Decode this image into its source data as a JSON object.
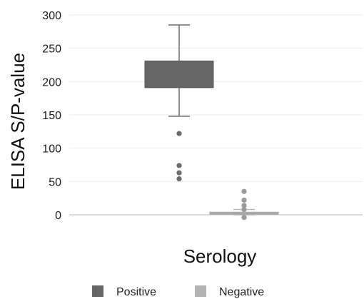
{
  "chart_data": {
    "type": "box",
    "title": "",
    "xlabel": "Serology",
    "ylabel": "ELISA S/P-value",
    "ylim": [
      -10,
      300
    ],
    "yticks": [
      0,
      50,
      100,
      150,
      200,
      250,
      300
    ],
    "grid": true,
    "legend_position": "bottom",
    "series": [
      {
        "name": "Positive",
        "color": "#666666",
        "whisker_low": 148,
        "q1": 191,
        "median": 191,
        "q3": 231,
        "whisker_high": 285,
        "outliers": [
          122,
          74,
          63,
          54
        ]
      },
      {
        "name": "Negative",
        "color": "#b3b3b3",
        "whisker_low": 0,
        "q1": 1,
        "median": 2,
        "q3": 4,
        "whisker_high": 8,
        "outliers": [
          35,
          22,
          14,
          8,
          -4
        ]
      }
    ]
  }
}
